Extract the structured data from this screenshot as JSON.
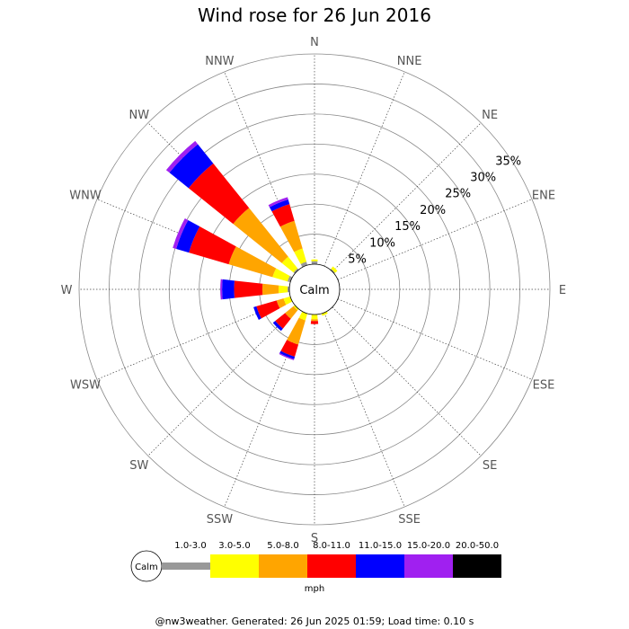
{
  "chart_data": {
    "type": "wind-rose",
    "title": "Wind rose for 26 Jun 2016",
    "calm_label": "Calm",
    "unit": "mph",
    "radial_max": 35,
    "radial_ticks": [
      5,
      10,
      15,
      20,
      25,
      30,
      35
    ],
    "radial_tick_labels": [
      "5%",
      "10%",
      "15%",
      "20%",
      "25%",
      "30%",
      "35%"
    ],
    "directions": [
      "N",
      "NNE",
      "NE",
      "ENE",
      "E",
      "ESE",
      "SE",
      "SSE",
      "S",
      "SSW",
      "SW",
      "WSW",
      "W",
      "WNW",
      "NW",
      "NNW"
    ],
    "speed_bins": [
      {
        "label": "1.0-3.0",
        "color": "#999999"
      },
      {
        "label": "3.0-5.0",
        "color": "#ffff00"
      },
      {
        "label": "5.0-8.0",
        "color": "#ffa500"
      },
      {
        "label": "8.0-11.0",
        "color": "#ff0000"
      },
      {
        "label": "11.0-15.0",
        "color": "#0000ff"
      },
      {
        "label": "15.0-20.0",
        "color": "#a020f0"
      },
      {
        "label": "20.0-50.0",
        "color": "#000000"
      }
    ],
    "series": [
      {
        "name": "1.0-3.0",
        "values": [
          0.5,
          0,
          0.2,
          0,
          0,
          0,
          0,
          0,
          0,
          0,
          0,
          0,
          0.3,
          0.5,
          0.3,
          0.6
        ]
      },
      {
        "name": "3.0-5.0",
        "values": [
          0.3,
          0,
          0.5,
          0,
          0,
          0,
          0,
          0.4,
          0.8,
          1.2,
          0.3,
          1.2,
          1.5,
          2.6,
          2.5,
          2.3
        ]
      },
      {
        "name": "5.0-8.0",
        "values": [
          0,
          0,
          0,
          0,
          0,
          0,
          0,
          0,
          0.3,
          4.2,
          1.8,
          1.2,
          2.7,
          7.6,
          10.4,
          4.8
        ]
      },
      {
        "name": "8.0-11.0",
        "values": [
          0,
          0,
          0,
          0,
          0,
          0,
          0,
          0,
          0.5,
          2.1,
          2.1,
          3.5,
          4.7,
          6.9,
          9.5,
          2.9
        ]
      },
      {
        "name": "11.0-15.0",
        "values": [
          0,
          0,
          0,
          0,
          0,
          0,
          0,
          0,
          0,
          0.4,
          0.5,
          0.5,
          2.0,
          2.2,
          4.1,
          0.8
        ]
      },
      {
        "name": "15.0-20.0",
        "values": [
          0,
          0,
          0,
          0,
          0,
          0,
          0,
          0,
          0,
          0.2,
          0,
          0,
          0.3,
          0.6,
          0.7,
          0.4
        ]
      },
      {
        "name": "20.0-50.0",
        "values": [
          0,
          0,
          0,
          0,
          0,
          0,
          0,
          0,
          0,
          0,
          0,
          0,
          0,
          0,
          0,
          0
        ]
      }
    ],
    "grid": true
  },
  "footer": "@nw3weather. Generated: 26 Jun 2025 01:59; Load time: 0.10 s"
}
